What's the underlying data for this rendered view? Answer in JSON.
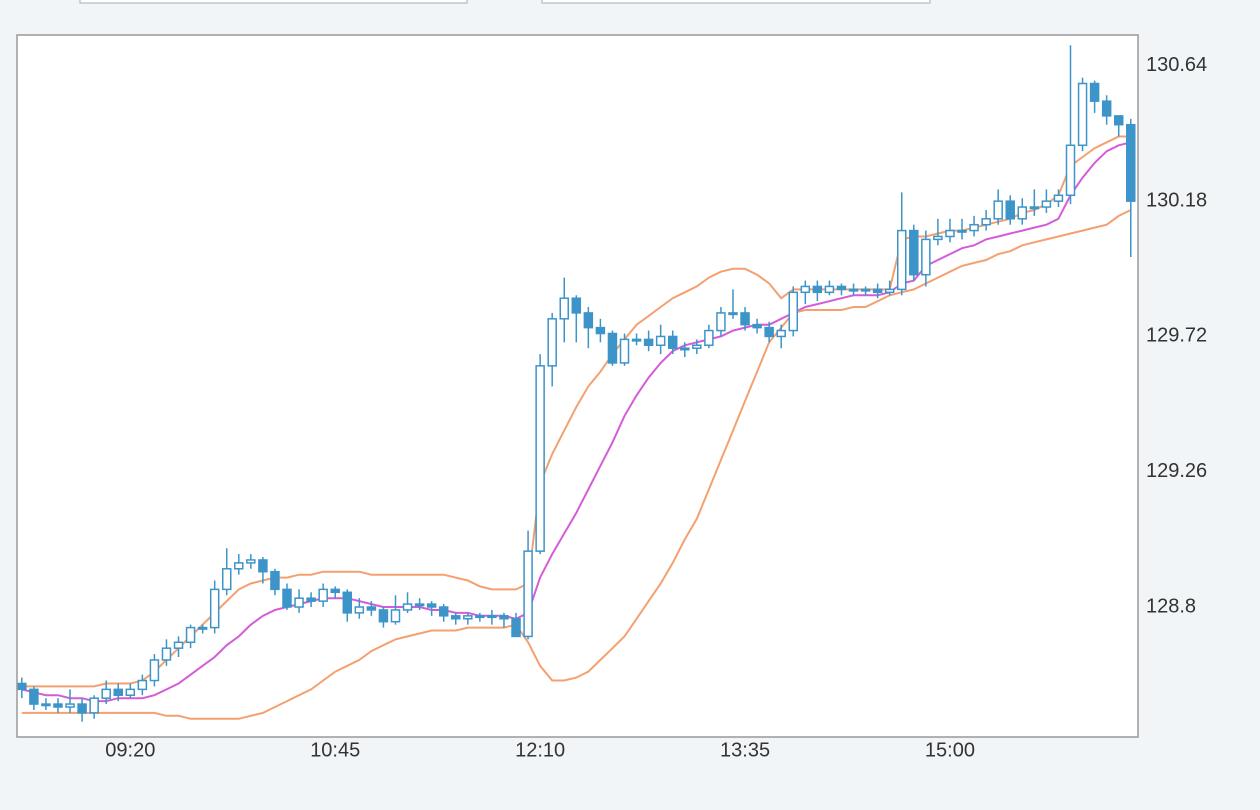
{
  "chart_data": {
    "type": "candlestick",
    "x": [
      "08:35",
      "08:40",
      "08:45",
      "08:50",
      "08:55",
      "09:00",
      "09:05",
      "09:10",
      "09:15",
      "09:20",
      "09:25",
      "09:30",
      "09:35",
      "09:40",
      "09:45",
      "09:50",
      "09:55",
      "10:00",
      "10:05",
      "10:10",
      "10:15",
      "10:20",
      "10:25",
      "10:30",
      "10:35",
      "10:40",
      "10:45",
      "10:50",
      "10:55",
      "11:00",
      "11:05",
      "11:10",
      "11:15",
      "11:20",
      "11:25",
      "11:30",
      "11:35",
      "11:40",
      "11:45",
      "11:50",
      "11:55",
      "12:00",
      "12:05",
      "12:10",
      "12:15",
      "12:20",
      "12:25",
      "12:30",
      "12:35",
      "12:40",
      "12:45",
      "12:50",
      "12:55",
      "13:00",
      "13:05",
      "13:10",
      "13:15",
      "13:20",
      "13:25",
      "13:30",
      "13:35",
      "13:40",
      "13:45",
      "13:50",
      "13:55",
      "14:00",
      "14:05",
      "14:10",
      "14:15",
      "14:20",
      "14:25",
      "14:30",
      "14:35",
      "14:40",
      "14:45",
      "14:50",
      "14:55",
      "15:00",
      "15:05",
      "15:10",
      "15:15",
      "15:20",
      "15:25",
      "15:30",
      "15:35",
      "15:40",
      "15:45",
      "15:50",
      "15:55",
      "16:00",
      "16:05",
      "16:10",
      "16:15"
    ],
    "open": [
      128.54,
      128.52,
      128.47,
      128.47,
      128.46,
      128.47,
      128.44,
      128.49,
      128.52,
      128.5,
      128.52,
      128.55,
      128.62,
      128.66,
      128.68,
      128.73,
      128.73,
      128.86,
      128.93,
      128.95,
      128.96,
      128.92,
      128.86,
      128.8,
      128.83,
      128.82,
      128.86,
      128.85,
      128.78,
      128.8,
      128.79,
      128.75,
      128.79,
      128.81,
      128.81,
      128.8,
      128.77,
      128.76,
      128.77,
      128.77,
      128.77,
      128.76,
      128.7,
      128.99,
      129.62,
      129.78,
      129.85,
      129.8,
      129.75,
      129.73,
      129.63,
      129.71,
      129.71,
      129.69,
      129.72,
      129.68,
      129.68,
      129.69,
      129.74,
      129.8,
      129.8,
      129.76,
      129.75,
      129.72,
      129.74,
      129.87,
      129.89,
      129.87,
      129.89,
      129.88,
      129.88,
      129.88,
      129.87,
      129.88,
      130.08,
      129.93,
      130.05,
      130.06,
      130.08,
      130.08,
      130.1,
      130.12,
      130.18,
      130.12,
      130.16,
      130.16,
      130.18,
      130.2,
      130.37,
      130.58,
      130.52,
      130.47,
      130.44
    ],
    "high": [
      128.56,
      128.53,
      128.49,
      128.49,
      128.52,
      128.49,
      128.5,
      128.55,
      128.54,
      128.54,
      128.57,
      128.64,
      128.69,
      128.7,
      128.74,
      128.74,
      128.89,
      129.0,
      128.98,
      128.98,
      128.97,
      128.93,
      128.88,
      128.86,
      128.85,
      128.88,
      128.87,
      128.86,
      128.83,
      128.82,
      128.8,
      128.84,
      128.85,
      128.83,
      128.82,
      128.81,
      128.78,
      128.78,
      128.78,
      128.79,
      128.78,
      128.78,
      129.06,
      129.66,
      129.8,
      129.92,
      129.86,
      129.82,
      129.78,
      129.74,
      129.73,
      129.73,
      129.74,
      129.76,
      129.74,
      129.7,
      129.71,
      129.76,
      129.82,
      129.88,
      129.82,
      129.78,
      129.77,
      129.76,
      129.89,
      129.91,
      129.91,
      129.91,
      129.9,
      129.9,
      129.89,
      129.9,
      129.91,
      130.21,
      130.1,
      130.08,
      130.12,
      130.12,
      130.12,
      130.13,
      130.15,
      130.22,
      130.2,
      130.19,
      130.22,
      130.22,
      130.22,
      130.71,
      130.6,
      130.59,
      130.54,
      130.46,
      130.46
    ],
    "low": [
      128.49,
      128.45,
      128.45,
      128.44,
      128.44,
      128.41,
      128.42,
      128.47,
      128.48,
      128.49,
      128.5,
      128.53,
      128.6,
      128.63,
      128.66,
      128.71,
      128.71,
      128.84,
      128.91,
      128.93,
      128.88,
      128.84,
      128.79,
      128.78,
      128.8,
      128.8,
      128.83,
      128.75,
      128.76,
      128.77,
      128.73,
      128.74,
      128.78,
      128.79,
      128.77,
      128.75,
      128.74,
      128.74,
      128.75,
      128.74,
      128.73,
      128.7,
      128.69,
      128.98,
      129.55,
      129.7,
      129.7,
      129.68,
      129.7,
      129.62,
      129.62,
      129.69,
      129.67,
      129.66,
      129.66,
      129.65,
      129.66,
      129.68,
      129.72,
      129.78,
      129.74,
      129.73,
      129.7,
      129.68,
      129.72,
      129.83,
      129.84,
      129.86,
      129.86,
      129.86,
      129.86,
      129.85,
      129.86,
      129.86,
      129.91,
      129.89,
      130.03,
      130.04,
      130.05,
      130.06,
      130.08,
      130.1,
      130.1,
      130.1,
      130.13,
      130.14,
      130.16,
      130.17,
      130.35,
      130.48,
      130.44,
      130.4,
      129.99
    ],
    "close": [
      128.52,
      128.47,
      128.47,
      128.46,
      128.47,
      128.44,
      128.49,
      128.52,
      128.5,
      128.52,
      128.55,
      128.62,
      128.66,
      128.68,
      128.73,
      128.73,
      128.86,
      128.93,
      128.95,
      128.96,
      128.92,
      128.86,
      128.8,
      128.83,
      128.82,
      128.86,
      128.85,
      128.78,
      128.8,
      128.79,
      128.75,
      128.79,
      128.81,
      128.81,
      128.8,
      128.77,
      128.76,
      128.77,
      128.77,
      128.77,
      128.76,
      128.7,
      128.99,
      129.62,
      129.78,
      129.85,
      129.8,
      129.75,
      129.73,
      129.63,
      129.71,
      129.71,
      129.69,
      129.72,
      129.68,
      129.68,
      129.69,
      129.74,
      129.8,
      129.8,
      129.76,
      129.75,
      129.72,
      129.74,
      129.87,
      129.89,
      129.87,
      129.89,
      129.88,
      129.88,
      129.88,
      129.87,
      129.88,
      130.08,
      129.93,
      130.05,
      130.06,
      130.08,
      130.08,
      130.1,
      130.12,
      130.18,
      130.12,
      130.16,
      130.16,
      130.18,
      130.2,
      130.37,
      130.58,
      130.52,
      130.47,
      130.44,
      130.18
    ],
    "up_color": "#ffffff",
    "down_color": "#3d94c8",
    "candle_stroke": "#3d94c8",
    "series": [
      {
        "color": "#f4a070",
        "values": [
          128.53,
          128.53,
          128.53,
          128.53,
          128.53,
          128.53,
          128.53,
          128.54,
          128.54,
          128.54,
          128.55,
          128.58,
          128.62,
          128.66,
          128.7,
          128.74,
          128.78,
          128.82,
          128.86,
          128.88,
          128.89,
          128.9,
          128.9,
          128.91,
          128.91,
          128.92,
          128.92,
          128.92,
          128.92,
          128.91,
          128.91,
          128.91,
          128.91,
          128.91,
          128.91,
          128.91,
          128.9,
          128.89,
          128.87,
          128.86,
          128.86,
          128.86,
          128.88,
          129.22,
          129.32,
          129.4,
          129.48,
          129.55,
          129.6,
          129.66,
          129.71,
          129.76,
          129.79,
          129.82,
          129.85,
          129.87,
          129.89,
          129.92,
          129.94,
          129.95,
          129.95,
          129.93,
          129.9,
          129.85,
          129.88,
          129.88,
          129.88,
          129.88,
          129.88,
          129.88,
          129.88,
          129.88,
          129.88,
          130.05,
          130.06,
          130.06,
          130.07,
          130.08,
          130.08,
          130.09,
          130.1,
          130.11,
          130.12,
          130.14,
          130.15,
          130.17,
          130.2,
          130.3,
          130.33,
          130.36,
          130.38,
          130.4,
          130.4
        ]
      },
      {
        "color": "#d45cd8",
        "values": [
          128.52,
          128.51,
          128.5,
          128.5,
          128.49,
          128.49,
          128.48,
          128.48,
          128.49,
          128.49,
          128.49,
          128.5,
          128.52,
          128.54,
          128.57,
          128.6,
          128.63,
          128.67,
          128.7,
          128.74,
          128.77,
          128.79,
          128.8,
          128.81,
          128.82,
          128.83,
          128.83,
          128.83,
          128.82,
          128.81,
          128.8,
          128.8,
          128.8,
          128.8,
          128.79,
          128.79,
          128.78,
          128.78,
          128.77,
          128.77,
          128.77,
          128.76,
          128.78,
          128.9,
          128.98,
          129.05,
          129.12,
          129.2,
          129.28,
          129.36,
          129.45,
          129.52,
          129.58,
          129.63,
          129.67,
          129.69,
          129.7,
          129.71,
          129.72,
          129.74,
          129.75,
          129.76,
          129.76,
          129.78,
          129.8,
          129.82,
          129.83,
          129.84,
          129.85,
          129.86,
          129.86,
          129.86,
          129.87,
          129.9,
          129.91,
          129.96,
          129.98,
          130.0,
          130.02,
          130.03,
          130.05,
          130.06,
          130.07,
          130.08,
          130.09,
          130.1,
          130.12,
          130.2,
          130.26,
          130.31,
          130.35,
          130.37,
          130.38
        ]
      },
      {
        "color": "#f4a070",
        "values": [
          128.44,
          128.44,
          128.44,
          128.44,
          128.44,
          128.44,
          128.44,
          128.44,
          128.44,
          128.44,
          128.44,
          128.44,
          128.43,
          128.43,
          128.42,
          128.42,
          128.42,
          128.42,
          128.42,
          128.43,
          128.44,
          128.46,
          128.48,
          128.5,
          128.52,
          128.55,
          128.58,
          128.6,
          128.62,
          128.65,
          128.67,
          128.69,
          128.7,
          128.71,
          128.72,
          128.72,
          128.72,
          128.73,
          128.73,
          128.73,
          128.73,
          128.74,
          128.68,
          128.6,
          128.55,
          128.55,
          128.56,
          128.58,
          128.62,
          128.66,
          128.7,
          128.76,
          128.82,
          128.88,
          128.95,
          129.03,
          129.1,
          129.2,
          129.3,
          129.4,
          129.5,
          129.6,
          129.7,
          129.75,
          129.8,
          129.81,
          129.81,
          129.81,
          129.81,
          129.82,
          129.82,
          129.84,
          129.86,
          129.87,
          129.88,
          129.9,
          129.92,
          129.94,
          129.96,
          129.97,
          129.98,
          130.0,
          130.01,
          130.03,
          130.04,
          130.05,
          130.06,
          130.07,
          130.08,
          130.09,
          130.1,
          130.13,
          130.15
        ]
      }
    ],
    "xlim": [
      "08:33",
      "16:18"
    ],
    "xticks": [
      "09:20",
      "10:45",
      "12:10",
      "13:35",
      "15:00"
    ],
    "ylim": [
      128.358,
      130.745
    ],
    "yticks": [
      128.8,
      129.26,
      129.72,
      130.18,
      130.64
    ],
    "grid": true
  }
}
